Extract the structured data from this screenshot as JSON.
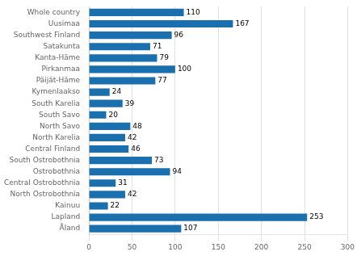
{
  "chart_data": {
    "type": "bar",
    "orientation": "horizontal",
    "categories": [
      "Whole country",
      "Uusimaa",
      "Southwest Finland",
      "Satakunta",
      "Kanta-Häme",
      "Pirkanmaa",
      "Päijät-Häme",
      "Kymenlaakso",
      "South Karelia",
      "South Savo",
      "North Savo",
      "North Karelia",
      "Central Finland",
      "South Ostrobothnia",
      "Ostrobothnia",
      "Central Ostrobothnia",
      "North Ostrobothnia",
      "Kainuu",
      "Lapland",
      "Åland"
    ],
    "values": [
      110,
      167,
      96,
      71,
      79,
      100,
      77,
      24,
      39,
      20,
      48,
      42,
      46,
      73,
      94,
      31,
      42,
      22,
      253,
      107
    ],
    "color": "#1a6faf",
    "xlim": [
      0,
      300
    ],
    "xticks": [
      0,
      50,
      100,
      150,
      200,
      250,
      300
    ],
    "grid": true,
    "data_labels": true
  }
}
